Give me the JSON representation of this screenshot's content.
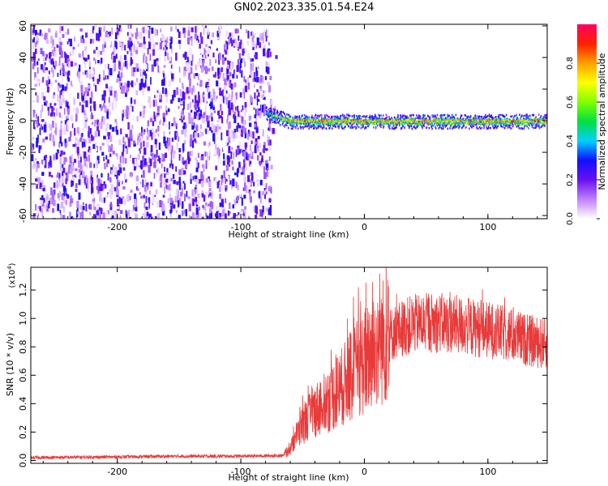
{
  "title": "GN02.2023.335.01.54.E24",
  "chart_data": [
    {
      "type": "heatmap",
      "xlabel": "Height of straight line (km)",
      "ylabel": "Frequency (Hz)",
      "xlim": [
        -270,
        148
      ],
      "ylim": [
        -62,
        61
      ],
      "xticks": [
        -200,
        -100,
        0,
        100
      ],
      "xtick_labels": [
        "-200",
        "-100",
        "0",
        "100"
      ],
      "yticks": [
        -60,
        -40,
        -20,
        0,
        20,
        40,
        60
      ],
      "ytick_labels": [
        "-60",
        "-40",
        "-20",
        "0",
        "20",
        "40",
        "60"
      ],
      "colorbar": {
        "label": "Normalized spectral amplitude",
        "range": [
          0,
          1
        ],
        "ticks": [
          0.0,
          0.2,
          0.4,
          0.6,
          0.8
        ],
        "tick_labels": [
          "0.0",
          "0.2",
          "0.4",
          "0.6",
          "0.8"
        ],
        "colors": [
          "#ffffff",
          "#c080ff",
          "#6a10f0",
          "#1010ff",
          "#00d0ff",
          "#00e040",
          "#80ff00",
          "#ffff00",
          "#ffa000",
          "#ff2000",
          "#ff0060"
        ]
      },
      "features": {
        "noise_region_x": [
          -270,
          -76
        ],
        "noise_peak_amplitude": 0.3,
        "signal_line_x": [
          -80,
          148
        ],
        "signal_line_frequency_hz": 0,
        "signal_peak_amplitude": 0.95
      }
    },
    {
      "type": "line",
      "xlabel": "Height of straight line (km)",
      "ylabel": "SNR (10 * v/v)",
      "multiplier_label": "(x10",
      "multiplier_exponent": "4",
      "multiplier_close": ")",
      "xlim": [
        -270,
        148
      ],
      "ylim": [
        -0.02,
        1.36
      ],
      "xticks": [
        -200,
        -100,
        0,
        100
      ],
      "xtick_labels": [
        "-200",
        "-100",
        "0",
        "100"
      ],
      "yticks": [
        0.0,
        0.2,
        0.4,
        0.6,
        0.8,
        1.0,
        1.2
      ],
      "ytick_labels": [
        "0.0",
        "0.2",
        "0.4",
        "0.6",
        "0.8",
        "1.0",
        "1.2"
      ],
      "line_color": "#e83a3a",
      "series": [
        {
          "x": [
            -270,
            -200,
            -150,
            -100,
            -65,
            -60,
            -55,
            -50,
            -40,
            -30,
            -20,
            -10,
            0,
            10,
            20,
            30,
            40,
            50,
            60,
            70,
            80,
            90,
            100,
            110,
            120,
            130,
            140,
            148
          ],
          "y": [
            0.02,
            0.025,
            0.03,
            0.03,
            0.035,
            0.08,
            0.18,
            0.25,
            0.35,
            0.42,
            0.5,
            0.6,
            0.7,
            0.8,
            0.88,
            0.93,
            0.96,
            0.97,
            0.97,
            0.96,
            0.95,
            0.93,
            0.92,
            0.9,
            0.88,
            0.85,
            0.83,
            0.82
          ]
        }
      ]
    }
  ]
}
